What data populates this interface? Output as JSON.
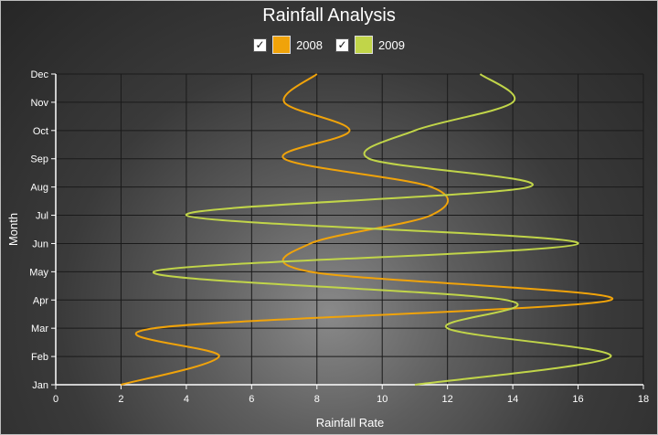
{
  "chart_data": {
    "type": "line",
    "title": "Rainfall Analysis",
    "xlabel": "Rainfall Rate",
    "ylabel": "Month",
    "xlim": [
      0,
      18
    ],
    "x_ticks": [
      "0",
      "2",
      "4",
      "6",
      "8",
      "10",
      "12",
      "14",
      "16",
      "18"
    ],
    "categories": [
      "Jan",
      "Feb",
      "Mar",
      "Apr",
      "May",
      "Jun",
      "Jul",
      "Aug",
      "Sep",
      "Oct",
      "Nov",
      "Dec"
    ],
    "grid": true,
    "legend_position": "top",
    "series": [
      {
        "name": "2008",
        "color": "#f0a30a",
        "checked": true,
        "values": [
          2,
          5,
          3,
          17,
          7.8,
          7.8,
          11.5,
          11.5,
          7,
          9,
          7,
          8
        ]
      },
      {
        "name": "2009",
        "color": "#c1d549",
        "checked": true,
        "values": [
          11,
          17,
          12,
          13.8,
          3,
          16,
          4,
          14.5,
          9.6,
          11,
          14,
          13
        ]
      }
    ]
  }
}
